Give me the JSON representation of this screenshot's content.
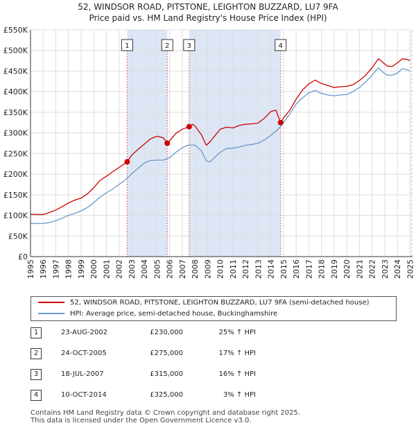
{
  "title_line1": "52, WINDSOR ROAD, PITSTONE, LEIGHTON BUZZARD, LU7 9FA",
  "title_line2": "Price paid vs. HM Land Registry's House Price Index (HPI)",
  "colors": {
    "property": "#cc0000",
    "hpi": "#6699cc",
    "shade": "#dde6f5",
    "grid": "#dddddd",
    "vline": "#e06666"
  },
  "chart_data": {
    "type": "line",
    "title": "52, WINDSOR ROAD, PITSTONE, LEIGHTON BUZZARD, LU7 9FA — Price paid vs. HM Land Registry's House Price Index (HPI)",
    "xlabel": "",
    "ylabel": "",
    "xlim": [
      1995,
      2025.2
    ],
    "ylim": [
      0,
      550000
    ],
    "y_ticks": [
      {
        "value": 0,
        "label": "£0"
      },
      {
        "value": 50000,
        "label": "£50K"
      },
      {
        "value": 100000,
        "label": "£100K"
      },
      {
        "value": 150000,
        "label": "£150K"
      },
      {
        "value": 200000,
        "label": "£200K"
      },
      {
        "value": 250000,
        "label": "£250K"
      },
      {
        "value": 300000,
        "label": "£300K"
      },
      {
        "value": 350000,
        "label": "£350K"
      },
      {
        "value": 400000,
        "label": "£400K"
      },
      {
        "value": 450000,
        "label": "£450K"
      },
      {
        "value": 500000,
        "label": "£500K"
      },
      {
        "value": 550000,
        "label": "£550K"
      }
    ],
    "x_ticks": [
      1995,
      1996,
      1997,
      1998,
      1999,
      2000,
      2001,
      2002,
      2003,
      2004,
      2005,
      2006,
      2007,
      2008,
      2009,
      2010,
      2011,
      2012,
      2013,
      2014,
      2015,
      2016,
      2017,
      2018,
      2019,
      2020,
      2021,
      2022,
      2023,
      2024,
      2025
    ],
    "grid": true,
    "legend_position": "below",
    "series": [
      {
        "name": "52, WINDSOR ROAD, PITSTONE, LEIGHTON BUZZARD, LU7 9FA (semi-detached house)",
        "color": "#cc0000",
        "x": [
          1995.0,
          1995.5,
          1996.0,
          1996.5,
          1997.0,
          1997.5,
          1998.0,
          1998.5,
          1999.0,
          1999.5,
          2000.0,
          2000.5,
          2001.0,
          2001.5,
          2002.0,
          2002.64,
          2003.0,
          2003.5,
          2004.0,
          2004.5,
          2005.0,
          2005.5,
          2005.81,
          2006.0,
          2006.5,
          2007.0,
          2007.54,
          2007.8,
          2008.0,
          2008.5,
          2008.9,
          2009.2,
          2009.6,
          2010.0,
          2010.5,
          2011.0,
          2011.5,
          2012.0,
          2012.5,
          2013.0,
          2013.5,
          2014.0,
          2014.4,
          2014.77,
          2015.0,
          2015.5,
          2016.0,
          2016.5,
          2017.0,
          2017.5,
          2018.0,
          2018.5,
          2019.0,
          2019.5,
          2020.0,
          2020.5,
          2021.0,
          2021.5,
          2022.0,
          2022.5,
          2022.9,
          2023.2,
          2023.6,
          2024.0,
          2024.4,
          2024.8,
          2025.0
        ],
        "y": [
          103000,
          102000,
          102000,
          107000,
          113000,
          121000,
          130000,
          137000,
          142000,
          152000,
          167000,
          185000,
          195000,
          206000,
          216000,
          230000,
          246000,
          260000,
          273000,
          286000,
          292000,
          288000,
          275000,
          281000,
          299000,
          309000,
          315000,
          321000,
          317000,
          296000,
          270000,
          279000,
          294000,
          309000,
          314000,
          312000,
          318000,
          321000,
          322000,
          324000,
          336000,
          352000,
          355000,
          325000,
          336000,
          355000,
          382000,
          404000,
          419000,
          428000,
          420000,
          415000,
          410000,
          412000,
          413000,
          417000,
          427000,
          440000,
          458000,
          480000,
          470000,
          462000,
          461000,
          470000,
          480000,
          478000,
          475000
        ]
      },
      {
        "name": "HPI: Average price, semi-detached house, Buckinghamshire",
        "color": "#6699cc",
        "x": [
          1995.0,
          1995.5,
          1996.0,
          1996.5,
          1997.0,
          1997.5,
          1998.0,
          1998.5,
          1999.0,
          1999.5,
          2000.0,
          2000.5,
          2001.0,
          2001.5,
          2002.0,
          2002.5,
          2003.0,
          2003.5,
          2004.0,
          2004.5,
          2005.0,
          2005.5,
          2006.0,
          2006.5,
          2007.0,
          2007.5,
          2008.0,
          2008.5,
          2008.9,
          2009.2,
          2009.6,
          2010.0,
          2010.5,
          2011.0,
          2011.5,
          2012.0,
          2012.5,
          2013.0,
          2013.5,
          2014.0,
          2014.5,
          2014.77,
          2015.0,
          2015.5,
          2016.0,
          2016.5,
          2017.0,
          2017.5,
          2018.0,
          2018.5,
          2019.0,
          2019.5,
          2020.0,
          2020.5,
          2021.0,
          2021.5,
          2022.0,
          2022.5,
          2022.9,
          2023.2,
          2023.6,
          2024.0,
          2024.4,
          2024.8,
          2025.0
        ],
        "y": [
          81000,
          80000,
          80000,
          83000,
          87000,
          93000,
          100000,
          105000,
          111000,
          119000,
          131000,
          144000,
          155000,
          164000,
          175000,
          186000,
          201000,
          214000,
          227000,
          233000,
          234000,
          234000,
          240000,
          253000,
          264000,
          271000,
          270000,
          257000,
          232000,
          230000,
          242000,
          253000,
          262000,
          263000,
          266000,
          270000,
          272000,
          275000,
          283000,
          294000,
          307000,
          315000,
          325000,
          346000,
          370000,
          385000,
          397000,
          403000,
          396000,
          392000,
          390000,
          392000,
          393000,
          400000,
          410000,
          424000,
          440000,
          458000,
          446000,
          440000,
          440000,
          445000,
          456000,
          453000,
          450000
        ]
      }
    ],
    "shaded_bands": [
      [
        2002.64,
        2005.81
      ],
      [
        2007.54,
        2014.77
      ]
    ],
    "sale_markers": [
      {
        "label": "1",
        "x": 2002.64,
        "y": 230000
      },
      {
        "label": "2",
        "x": 2005.81,
        "y": 275000
      },
      {
        "label": "3",
        "x": 2007.54,
        "y": 315000
      },
      {
        "label": "4",
        "x": 2014.77,
        "y": 325000
      }
    ],
    "hatched_from": 2025.0
  },
  "legend": {
    "property": "52, WINDSOR ROAD, PITSTONE, LEIGHTON BUZZARD, LU7 9FA (semi-detached house)",
    "hpi": "HPI: Average price, semi-detached house, Buckinghamshire"
  },
  "sales": [
    {
      "num": "1",
      "date": "23-AUG-2002",
      "price": "£230,000",
      "hpi": "25% ↑ HPI"
    },
    {
      "num": "2",
      "date": "24-OCT-2005",
      "price": "£275,000",
      "hpi": "17% ↑ HPI"
    },
    {
      "num": "3",
      "date": "18-JUL-2007",
      "price": "£315,000",
      "hpi": "16% ↑ HPI"
    },
    {
      "num": "4",
      "date": "10-OCT-2014",
      "price": "£325,000",
      "hpi": "3% ↑ HPI"
    }
  ],
  "footer_line1": "Contains HM Land Registry data © Crown copyright and database right 2025.",
  "footer_line2": "This data is licensed under the Open Government Licence v3.0."
}
